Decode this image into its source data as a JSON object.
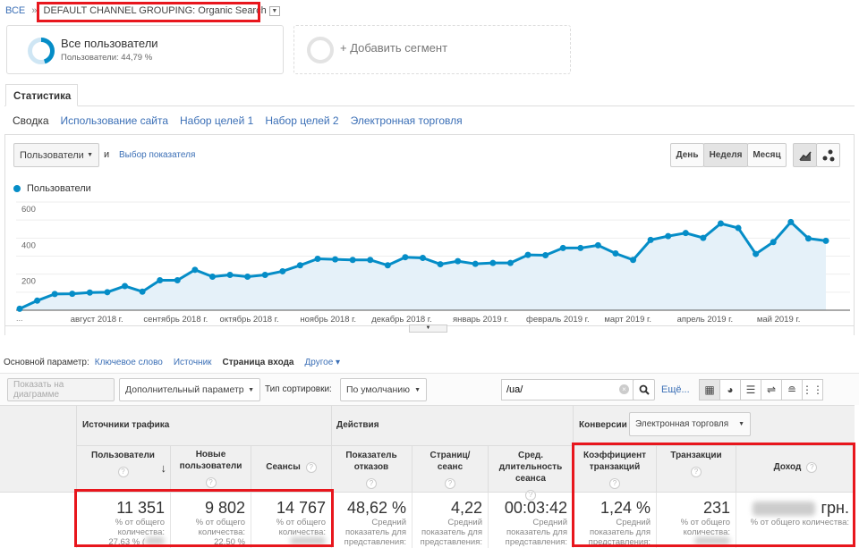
{
  "breadcrumb": {
    "root": "ВСЕ",
    "separator": "»",
    "current": "DEFAULT CHANNEL GROUPING: Organic Search"
  },
  "segments": [
    {
      "title": "Все пользователи",
      "subtitle": "Пользователи: 44,79 %",
      "share_percent": 44.79
    },
    {
      "title": "+ Добавить сегмент"
    }
  ],
  "tab": "Статистика",
  "subtabs": [
    "Сводка",
    "Использование сайта",
    "Набор целей 1",
    "Набор целей 2",
    "Электронная торговля"
  ],
  "chart_controls": {
    "metric": "Пользователи",
    "and": "и",
    "choose_metric": "Выбор показателя",
    "periods": [
      "День",
      "Неделя",
      "Месяц"
    ],
    "active_period": "Неделя",
    "chart_types": [
      "line-chart-icon",
      "motion-chart-icon"
    ]
  },
  "chart_data": {
    "type": "area",
    "series": [
      {
        "name": "Пользователи",
        "color": "#058dc7",
        "values": [
          8,
          53,
          90,
          91,
          98,
          100,
          134,
          103,
          166,
          166,
          224,
          186,
          196,
          186,
          196,
          216,
          249,
          285,
          282,
          279,
          279,
          249,
          294,
          290,
          255,
          272,
          257,
          262,
          262,
          307,
          305,
          345,
          345,
          360,
          315,
          279,
          390,
          411,
          428,
          401,
          481,
          456,
          312,
          378,
          489,
          398,
          385
        ]
      }
    ],
    "y_ticks": [
      "200",
      "400",
      "600"
    ],
    "y_tick_values": [
      200,
      400,
      600
    ],
    "ylim": [
      0,
      600
    ],
    "grid": true,
    "first_label": "...",
    "x_month_labels": [
      {
        "label": "август 2018 г.",
        "week_index": 4.4
      },
      {
        "label": "сентябрь 2018 г.",
        "week_index": 8.9
      },
      {
        "label": "октябрь 2018 г.",
        "week_index": 13.1
      },
      {
        "label": "ноябрь 2018 г.",
        "week_index": 17.6
      },
      {
        "label": "декабрь 2018 г.",
        "week_index": 21.8
      },
      {
        "label": "январь 2019 г.",
        "week_index": 26.3
      },
      {
        "label": "февраль 2019 г.",
        "week_index": 30.7
      },
      {
        "label": "март 2019 г.",
        "week_index": 34.7
      },
      {
        "label": "апрель 2019 г.",
        "week_index": 39.1
      },
      {
        "label": "май 2019 г.",
        "week_index": 43.3
      }
    ],
    "legend": "top-left"
  },
  "primary_dimension": {
    "label": "Основной параметр:",
    "options": [
      "Ключевое слово",
      "Источник",
      "Страница входа",
      "Другое"
    ],
    "active": "Страница входа"
  },
  "toolbar": {
    "plot_rows": "Показать на диаграмме",
    "secondary": "Дополнительный параметр",
    "sort_label": "Тип сортировки:",
    "sort_value": "По умолчанию",
    "search_value": "/ua/",
    "more": "Ещё...",
    "views": [
      "table-view-icon",
      "pie-view-icon",
      "bar-view-icon",
      "comparison-view-icon",
      "term-cloud-icon",
      "pivot-view-icon"
    ]
  },
  "table": {
    "groups": [
      "Источники трафика",
      "Действия",
      "Конверсии"
    ],
    "conversion_select": "Электронная торговля",
    "columns": [
      "Пользователи",
      "Новые пользователи",
      "Сеансы",
      "Показатель отказов",
      "Страниц/сеанс",
      "Сред. длительность сеанса",
      "Коэффициент транзакций",
      "Транзакции",
      "Доход"
    ],
    "totals": [
      {
        "value": "11 351",
        "sub": "% от общего количества:",
        "extra": "27,63 % ("
      },
      {
        "value": "9 802",
        "sub": "% от общего количества:",
        "extra": "22,50 %"
      },
      {
        "value": "14 767",
        "sub": "% от общего количества:"
      },
      {
        "value": "48,62 %",
        "sub": "Средний показатель для представления:"
      },
      {
        "value": "4,22",
        "sub": "Средний показатель для представления:"
      },
      {
        "value": "00:03:42",
        "sub": "Средний показатель для представления:"
      },
      {
        "value": "1,24 %",
        "sub": "Средний показатель для представления:"
      },
      {
        "value": "231",
        "sub": "% от общего количества:"
      },
      {
        "value": "грн.",
        "sub": "% от общего количества:"
      }
    ]
  },
  "colors": {
    "accent": "#058dc7",
    "highlight": "#e8161d",
    "link": "#3b6fb6"
  }
}
